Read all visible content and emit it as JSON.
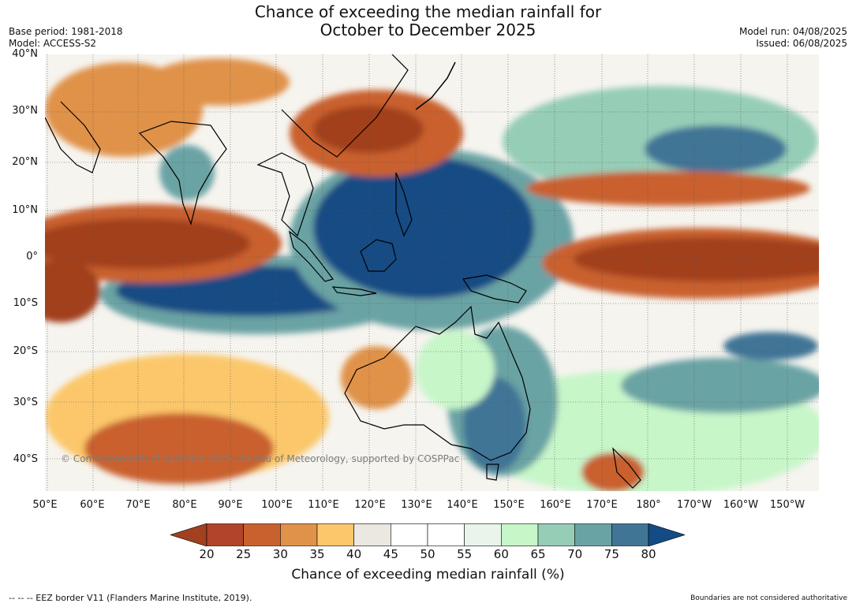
{
  "header": {
    "title_line1": "Chance of exceeding the median rainfall for",
    "title_line2": "October to December 2025",
    "base_period": "Base period: 1981-2018",
    "model": "Model: ACCESS-S2",
    "model_run": "Model run: 04/08/2025",
    "issued": "Issued: 06/08/2025"
  },
  "map": {
    "lat_labels": [
      "40°N",
      "30°N",
      "20°N",
      "10°N",
      "0°",
      "10°S",
      "20°S",
      "30°S",
      "40°S"
    ],
    "lon_labels": [
      "50°E",
      "60°E",
      "70°E",
      "80°E",
      "90°E",
      "100°E",
      "110°E",
      "120°E",
      "130°E",
      "140°E",
      "150°E",
      "160°E",
      "170°E",
      "180°",
      "170°W",
      "160°W",
      "150°W"
    ],
    "watermark": "© Commonwealth of Australia 2025, Bureau of Meteorology, supported by COSPPac",
    "regions": [
      {
        "name": "Arabian Sea and western Indian Ocean drier band",
        "category": "20-25"
      },
      {
        "name": "Eastern Indian Ocean wetter band",
        "category": "80+"
      },
      {
        "name": "Maritime Continent and western Pacific wetter zone",
        "category": "80+"
      },
      {
        "name": "Central equatorial Pacific drier band",
        "category": "20-25"
      },
      {
        "name": "North Pacific drier band near 12°N",
        "category": "25-30"
      },
      {
        "name": "Eastern China and Japan drier zone",
        "category": "20-25"
      },
      {
        "name": "Eastern Australia wetter",
        "category": "65-75"
      },
      {
        "name": "Western Australia drier",
        "category": "30-40"
      },
      {
        "name": "Southern Indian Ocean drier",
        "category": "30-40"
      },
      {
        "name": "South Pacific wetter band",
        "category": "70-80"
      }
    ]
  },
  "legend": {
    "ticks": [
      "20",
      "25",
      "30",
      "35",
      "40",
      "45",
      "50",
      "55",
      "60",
      "65",
      "70",
      "75",
      "80"
    ],
    "colors": [
      "#a2401f",
      "#b1442a",
      "#c9612f",
      "#e0924a",
      "#fbc76a",
      "#ebe7e1",
      "#ffffff",
      "#ffffff",
      "#e9f5ea",
      "#c7f6c9",
      "#96cdb7",
      "#6aa3a4",
      "#417596",
      "#134c84"
    ],
    "label": "Chance of exceeding median rainfall (%)"
  },
  "footer": {
    "eez_note": "--  --  -- EEZ border V11 (Flanders Marine Institute, 2019).",
    "disclaimer": "Boundaries are not considered authoritative"
  }
}
